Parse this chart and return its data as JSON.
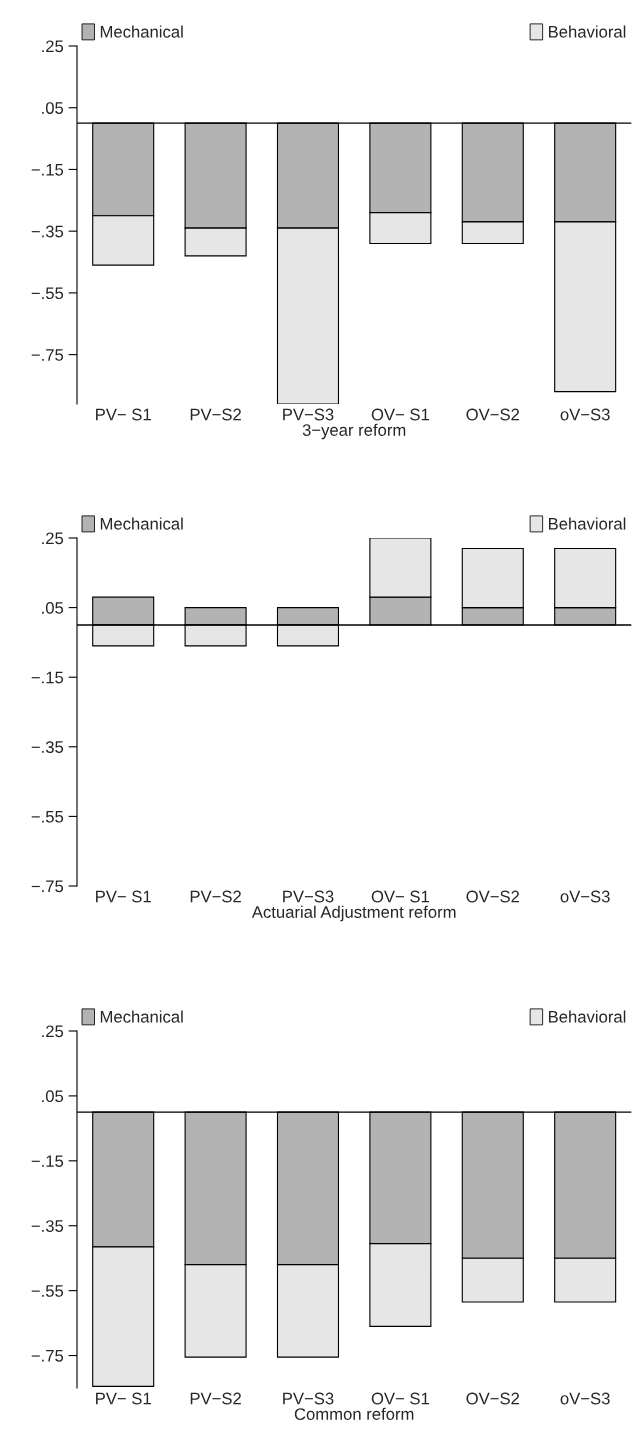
{
  "chart_data": [
    {
      "type": "bar",
      "stacked": true,
      "xlabel": "3−year reform",
      "legend": "top",
      "grid": false,
      "categories": [
        "PV− S1",
        "PV−S2",
        "PV−S3",
        "OV− S1",
        "OV−S2",
        "oV−S3"
      ],
      "series": [
        {
          "name": "Mechanical",
          "color": "#b3b3b3",
          "values": [
            -0.3,
            -0.34,
            -0.34,
            -0.29,
            -0.32,
            -0.32
          ]
        },
        {
          "name": "Behavioral",
          "color": "#e6e6e6",
          "values": [
            -0.16,
            -0.09,
            -0.57,
            -0.1,
            -0.07,
            -0.55
          ]
        }
      ],
      "ylim": [
        -0.91,
        0.25
      ],
      "yticks": [
        {
          "value": 0.25,
          "label": ".25"
        },
        {
          "value": 0.05,
          "label": ".05"
        },
        {
          "value": -0.15,
          "label": "−.15"
        },
        {
          "value": -0.35,
          "label": "−.35"
        },
        {
          "value": -0.55,
          "label": "−.55"
        },
        {
          "value": -0.75,
          "label": "−.75"
        }
      ],
      "ref_lines": [
        {
          "axis": "y",
          "value": 0,
          "color": "#000000"
        }
      ]
    },
    {
      "type": "bar",
      "stacked": true,
      "xlabel": "Actuarial Adjustment reform",
      "legend": "top",
      "grid": false,
      "categories": [
        "PV− S1",
        "PV−S2",
        "PV−S3",
        "OV− S1",
        "OV−S2",
        "oV−S3"
      ],
      "series": [
        {
          "name": "Mechanical",
          "color": "#b3b3b3",
          "values": [
            0.08,
            0.05,
            0.05,
            0.08,
            0.05,
            0.05
          ]
        },
        {
          "name": "Behavioral",
          "color": "#e6e6e6",
          "values": [
            -0.06,
            -0.06,
            -0.06,
            0.17,
            0.17,
            0.17
          ]
        }
      ],
      "ylim": [
        -0.75,
        0.25
      ],
      "yticks": [
        {
          "value": 0.25,
          "label": ".25"
        },
        {
          "value": 0.05,
          "label": ".05"
        },
        {
          "value": -0.15,
          "label": "−.15"
        },
        {
          "value": -0.35,
          "label": "−.35"
        },
        {
          "value": -0.55,
          "label": "−.55"
        },
        {
          "value": -0.75,
          "label": "−.75"
        }
      ],
      "ref_lines": [
        {
          "axis": "y",
          "value": 0,
          "color": "#000000"
        }
      ]
    },
    {
      "type": "bar",
      "stacked": true,
      "xlabel": "Common reform",
      "legend": "top",
      "grid": false,
      "categories": [
        "PV− S1",
        "PV−S2",
        "PV−S3",
        "OV− S1",
        "OV−S2",
        "oV−S3"
      ],
      "series": [
        {
          "name": "Mechanical",
          "color": "#b3b3b3",
          "values": [
            -0.415,
            -0.47,
            -0.47,
            -0.405,
            -0.45,
            -0.45
          ]
        },
        {
          "name": "Behavioral",
          "color": "#e6e6e6",
          "values": [
            -0.43,
            -0.285,
            -0.285,
            -0.255,
            -0.135,
            -0.135
          ]
        }
      ],
      "ylim": [
        -0.85,
        0.25
      ],
      "yticks": [
        {
          "value": 0.25,
          "label": ".25"
        },
        {
          "value": 0.05,
          "label": ".05"
        },
        {
          "value": -0.15,
          "label": "−.15"
        },
        {
          "value": -0.35,
          "label": "−.35"
        },
        {
          "value": -0.55,
          "label": "−.55"
        },
        {
          "value": -0.75,
          "label": "−.75"
        }
      ],
      "ref_lines": [
        {
          "axis": "y",
          "value": 0,
          "color": "#000000"
        }
      ]
    }
  ]
}
